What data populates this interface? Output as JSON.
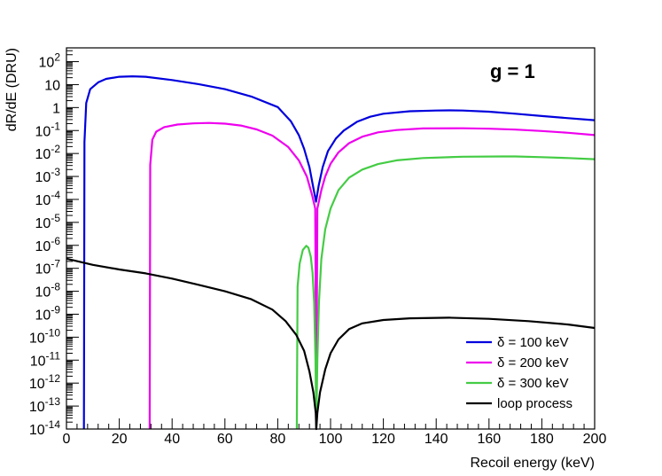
{
  "chart_data": {
    "type": "line",
    "title": "",
    "annotation": "g = 1",
    "xlabel": "Recoil energy (keV)",
    "ylabel": "dR/dE (DRU)",
    "xlim": [
      0,
      200
    ],
    "ylim_log10": [
      -14,
      2.6
    ],
    "y_scale": "log",
    "grid": false,
    "legend_position": "bottom-right",
    "x_ticks": [
      "0",
      "20",
      "40",
      "60",
      "80",
      "100",
      "120",
      "140",
      "160",
      "180",
      "200"
    ],
    "y_ticks": [
      {
        "base": "10",
        "exp": "2"
      },
      {
        "base": "10",
        "exp": ""
      },
      {
        "base": "1",
        "exp": ""
      },
      {
        "base": "10",
        "exp": "-1"
      },
      {
        "base": "10",
        "exp": "-2"
      },
      {
        "base": "10",
        "exp": "-3"
      },
      {
        "base": "10",
        "exp": "-4"
      },
      {
        "base": "10",
        "exp": "-5"
      },
      {
        "base": "10",
        "exp": "-6"
      },
      {
        "base": "10",
        "exp": "-7"
      },
      {
        "base": "10",
        "exp": "-8"
      },
      {
        "base": "10",
        "exp": "-9"
      },
      {
        "base": "10",
        "exp": "-10"
      },
      {
        "base": "10",
        "exp": "-11"
      },
      {
        "base": "10",
        "exp": "-12"
      },
      {
        "base": "10",
        "exp": "-13"
      },
      {
        "base": "10",
        "exp": "-14"
      }
    ],
    "series": [
      {
        "name": "δ = 100 keV",
        "color": "#0000dd",
        "points": [
          [
            6.6,
            -14
          ],
          [
            6.8,
            -1.5
          ],
          [
            7.5,
            0.2
          ],
          [
            9,
            0.8
          ],
          [
            12,
            1.1
          ],
          [
            15,
            1.25
          ],
          [
            20,
            1.34
          ],
          [
            25,
            1.36
          ],
          [
            30,
            1.34
          ],
          [
            40,
            1.2
          ],
          [
            50,
            1.02
          ],
          [
            60,
            0.8
          ],
          [
            70,
            0.48
          ],
          [
            80,
            0.02
          ],
          [
            85,
            -0.6
          ],
          [
            88,
            -1.2
          ],
          [
            90,
            -1.8
          ],
          [
            92,
            -2.6
          ],
          [
            93.5,
            -3.5
          ],
          [
            94.5,
            -4.1
          ],
          [
            95.5,
            -3.4
          ],
          [
            97,
            -2.6
          ],
          [
            99,
            -1.9
          ],
          [
            102,
            -1.35
          ],
          [
            105,
            -1.0
          ],
          [
            110,
            -0.62
          ],
          [
            115,
            -0.4
          ],
          [
            120,
            -0.27
          ],
          [
            130,
            -0.16
          ],
          [
            140,
            -0.13
          ],
          [
            145,
            -0.12
          ],
          [
            150,
            -0.13
          ],
          [
            160,
            -0.18
          ],
          [
            170,
            -0.27
          ],
          [
            180,
            -0.37
          ],
          [
            190,
            -0.46
          ],
          [
            200,
            -0.55
          ]
        ]
      },
      {
        "name": "δ = 200 keV",
        "color": "#ee00ee",
        "points": [
          [
            31.5,
            -14
          ],
          [
            31.7,
            -2.5
          ],
          [
            32.5,
            -1.4
          ],
          [
            34,
            -1.05
          ],
          [
            37,
            -0.85
          ],
          [
            42,
            -0.74
          ],
          [
            48,
            -0.69
          ],
          [
            54,
            -0.67
          ],
          [
            60,
            -0.7
          ],
          [
            66,
            -0.78
          ],
          [
            72,
            -0.95
          ],
          [
            78,
            -1.22
          ],
          [
            84,
            -1.72
          ],
          [
            88,
            -2.3
          ],
          [
            91,
            -3.0
          ],
          [
            93,
            -3.8
          ],
          [
            94.2,
            -4.4
          ],
          [
            94.6,
            -14
          ],
          [
            95,
            -4.4
          ],
          [
            96.5,
            -3.6
          ],
          [
            98,
            -3.0
          ],
          [
            100,
            -2.45
          ],
          [
            103,
            -1.95
          ],
          [
            107,
            -1.55
          ],
          [
            112,
            -1.27
          ],
          [
            118,
            -1.08
          ],
          [
            125,
            -0.98
          ],
          [
            135,
            -0.91
          ],
          [
            150,
            -0.9
          ],
          [
            160,
            -0.92
          ],
          [
            170,
            -0.96
          ],
          [
            180,
            -1.02
          ],
          [
            190,
            -1.1
          ],
          [
            200,
            -1.2
          ]
        ]
      },
      {
        "name": "δ = 300 keV",
        "color": "#44cc44",
        "points": [
          [
            87.2,
            -14
          ],
          [
            87.5,
            -7.8
          ],
          [
            88.3,
            -6.8
          ],
          [
            89.5,
            -6.2
          ],
          [
            90.8,
            -6.02
          ],
          [
            91.6,
            -6.1
          ],
          [
            92.5,
            -6.5
          ],
          [
            93.2,
            -7.2
          ],
          [
            93.8,
            -8.5
          ],
          [
            94.3,
            -11
          ],
          [
            94.6,
            -14
          ],
          [
            95,
            -11
          ],
          [
            95.6,
            -8.5
          ],
          [
            96.5,
            -6.6
          ],
          [
            98,
            -5.3
          ],
          [
            100,
            -4.4
          ],
          [
            103,
            -3.6
          ],
          [
            107,
            -3.05
          ],
          [
            112,
            -2.7
          ],
          [
            118,
            -2.46
          ],
          [
            125,
            -2.3
          ],
          [
            135,
            -2.2
          ],
          [
            150,
            -2.14
          ],
          [
            165,
            -2.13
          ],
          [
            170,
            -2.13
          ],
          [
            180,
            -2.16
          ],
          [
            190,
            -2.2
          ],
          [
            200,
            -2.25
          ]
        ]
      },
      {
        "name": "loop process",
        "color": "#000000",
        "points": [
          [
            0,
            -6.58
          ],
          [
            10,
            -6.85
          ],
          [
            20,
            -7.05
          ],
          [
            30,
            -7.22
          ],
          [
            40,
            -7.45
          ],
          [
            50,
            -7.72
          ],
          [
            60,
            -8.0
          ],
          [
            70,
            -8.35
          ],
          [
            78,
            -8.8
          ],
          [
            83,
            -9.3
          ],
          [
            87,
            -9.9
          ],
          [
            90,
            -10.6
          ],
          [
            92,
            -11.5
          ],
          [
            93.5,
            -12.4
          ],
          [
            94.4,
            -13.3
          ],
          [
            94.6,
            -14
          ],
          [
            95,
            -13.3
          ],
          [
            96,
            -12.4
          ],
          [
            98,
            -11.4
          ],
          [
            100,
            -10.7
          ],
          [
            103,
            -10.1
          ],
          [
            107,
            -9.65
          ],
          [
            112,
            -9.4
          ],
          [
            120,
            -9.25
          ],
          [
            130,
            -9.18
          ],
          [
            145,
            -9.15
          ],
          [
            160,
            -9.2
          ],
          [
            175,
            -9.3
          ],
          [
            190,
            -9.45
          ],
          [
            200,
            -9.6
          ]
        ]
      }
    ]
  }
}
